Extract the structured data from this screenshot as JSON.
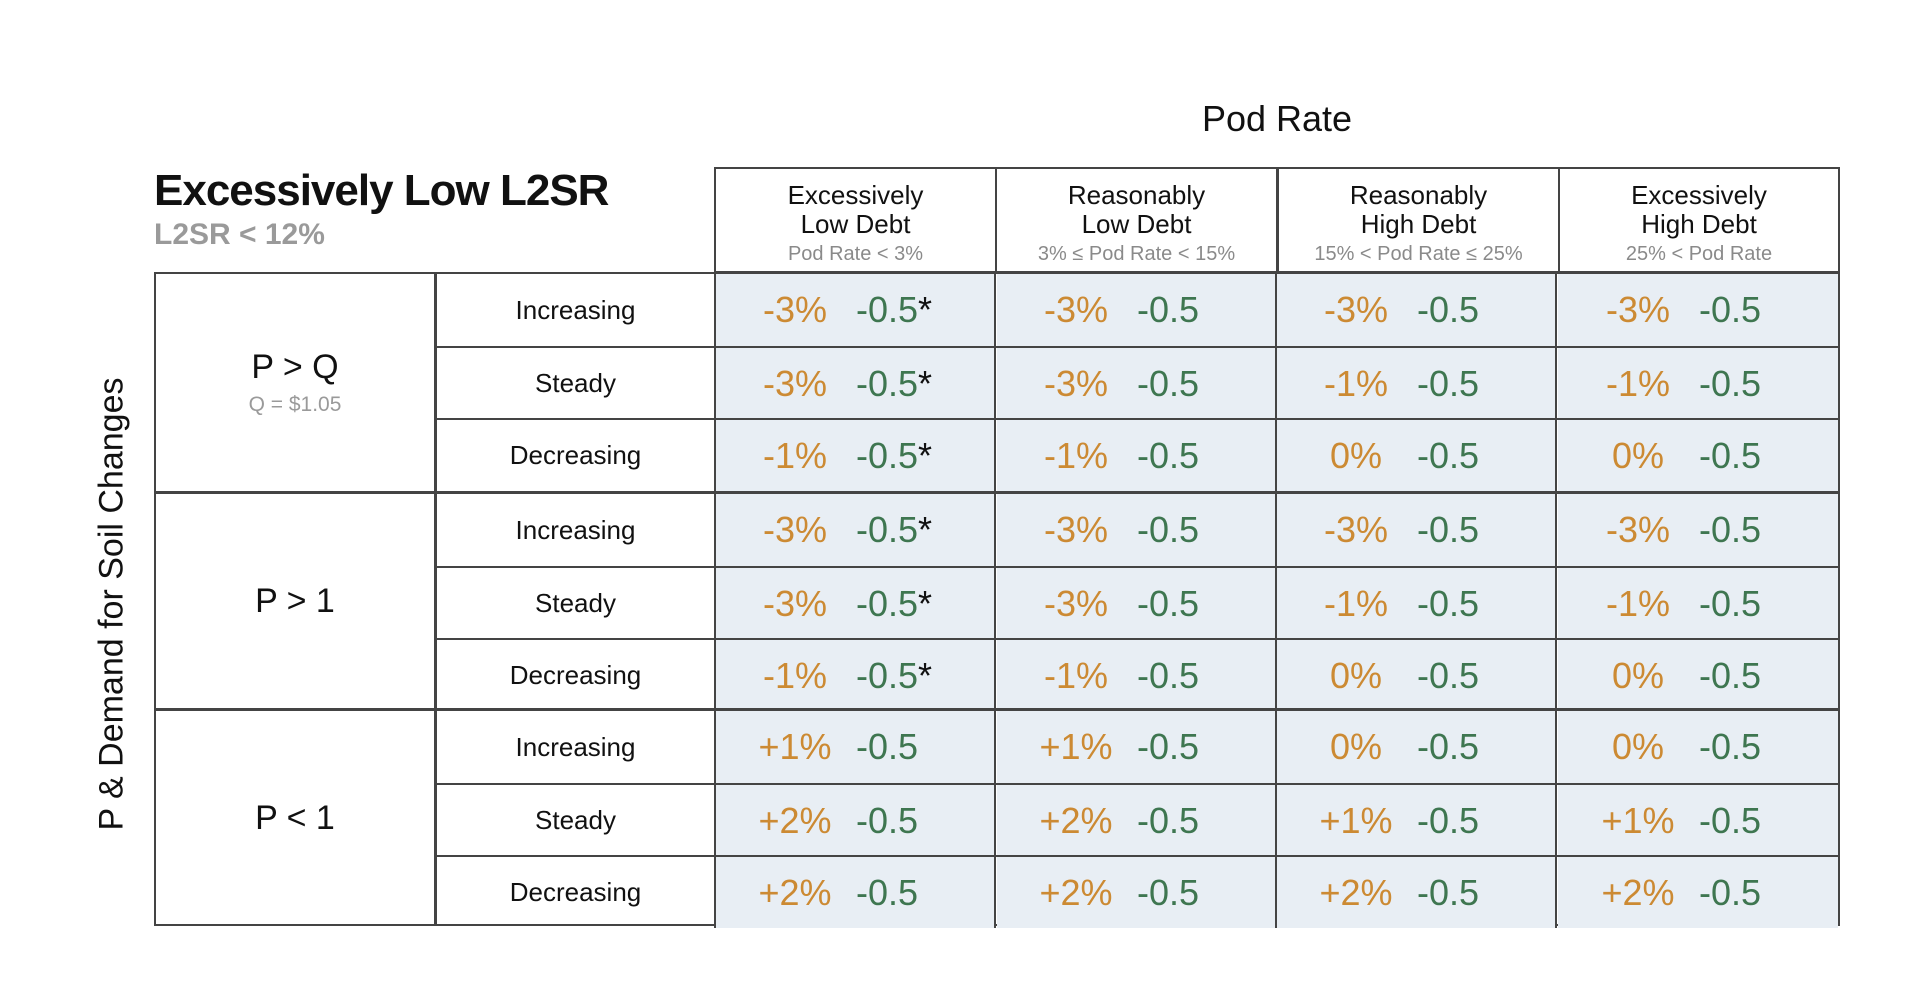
{
  "axis": {
    "top": "Pod Rate",
    "left": "P & Demand for Soil Changes"
  },
  "title": "Excessively Low L2SR",
  "subtitle": "L2SR < 12%",
  "columns": [
    {
      "line1": "Excessively",
      "line2": "Low Debt",
      "sub": "Pod Rate < 3%"
    },
    {
      "line1": "Reasonably",
      "line2": "Low Debt",
      "sub": "3% ≤ Pod Rate < 15%"
    },
    {
      "line1": "Reasonably",
      "line2": "High Debt",
      "sub": "15% < Pod Rate ≤ 25%"
    },
    {
      "line1": "Excessively",
      "line2": "High Debt",
      "sub": "25% < Pod Rate"
    }
  ],
  "groups": [
    {
      "label": "P > Q",
      "sublabel": "Q = $1.05",
      "rows": [
        {
          "label": "Increasing",
          "cells": [
            {
              "pct": "-3%",
              "val": "-0.5",
              "star": "*"
            },
            {
              "pct": "-3%",
              "val": "-0.5",
              "star": ""
            },
            {
              "pct": "-3%",
              "val": "-0.5",
              "star": ""
            },
            {
              "pct": "-3%",
              "val": "-0.5",
              "star": ""
            }
          ]
        },
        {
          "label": "Steady",
          "cells": [
            {
              "pct": "-3%",
              "val": "-0.5",
              "star": "*"
            },
            {
              "pct": "-3%",
              "val": "-0.5",
              "star": ""
            },
            {
              "pct": "-1%",
              "val": "-0.5",
              "star": ""
            },
            {
              "pct": "-1%",
              "val": "-0.5",
              "star": ""
            }
          ]
        },
        {
          "label": "Decreasing",
          "cells": [
            {
              "pct": "-1%",
              "val": "-0.5",
              "star": "*"
            },
            {
              "pct": "-1%",
              "val": "-0.5",
              "star": ""
            },
            {
              "pct": "0%",
              "val": "-0.5",
              "star": ""
            },
            {
              "pct": "0%",
              "val": "-0.5",
              "star": ""
            }
          ]
        }
      ]
    },
    {
      "label": "P > 1",
      "sublabel": "",
      "rows": [
        {
          "label": "Increasing",
          "cells": [
            {
              "pct": "-3%",
              "val": "-0.5",
              "star": "*"
            },
            {
              "pct": "-3%",
              "val": "-0.5",
              "star": ""
            },
            {
              "pct": "-3%",
              "val": "-0.5",
              "star": ""
            },
            {
              "pct": "-3%",
              "val": "-0.5",
              "star": ""
            }
          ]
        },
        {
          "label": "Steady",
          "cells": [
            {
              "pct": "-3%",
              "val": "-0.5",
              "star": "*"
            },
            {
              "pct": "-3%",
              "val": "-0.5",
              "star": ""
            },
            {
              "pct": "-1%",
              "val": "-0.5",
              "star": ""
            },
            {
              "pct": "-1%",
              "val": "-0.5",
              "star": ""
            }
          ]
        },
        {
          "label": "Decreasing",
          "cells": [
            {
              "pct": "-1%",
              "val": "-0.5",
              "star": "*"
            },
            {
              "pct": "-1%",
              "val": "-0.5",
              "star": ""
            },
            {
              "pct": "0%",
              "val": "-0.5",
              "star": ""
            },
            {
              "pct": "0%",
              "val": "-0.5",
              "star": ""
            }
          ]
        }
      ]
    },
    {
      "label": "P < 1",
      "sublabel": "",
      "rows": [
        {
          "label": "Increasing",
          "cells": [
            {
              "pct": "+1%",
              "val": "-0.5",
              "star": ""
            },
            {
              "pct": "+1%",
              "val": "-0.5",
              "star": ""
            },
            {
              "pct": "0%",
              "val": "-0.5",
              "star": ""
            },
            {
              "pct": "0%",
              "val": "-0.5",
              "star": ""
            }
          ]
        },
        {
          "label": "Steady",
          "cells": [
            {
              "pct": "+2%",
              "val": "-0.5",
              "star": ""
            },
            {
              "pct": "+2%",
              "val": "-0.5",
              "star": ""
            },
            {
              "pct": "+1%",
              "val": "-0.5",
              "star": ""
            },
            {
              "pct": "+1%",
              "val": "-0.5",
              "star": ""
            }
          ]
        },
        {
          "label": "Decreasing",
          "cells": [
            {
              "pct": "+2%",
              "val": "-0.5",
              "star": ""
            },
            {
              "pct": "+2%",
              "val": "-0.5",
              "star": ""
            },
            {
              "pct": "+2%",
              "val": "-0.5",
              "star": ""
            },
            {
              "pct": "+2%",
              "val": "-0.5",
              "star": ""
            }
          ]
        }
      ]
    }
  ],
  "colors": {
    "pct": "#cc8a33",
    "value": "#3e7650",
    "cell_bg": "#e8eef4",
    "border": "#444444",
    "muted": "#9a9a9a"
  }
}
